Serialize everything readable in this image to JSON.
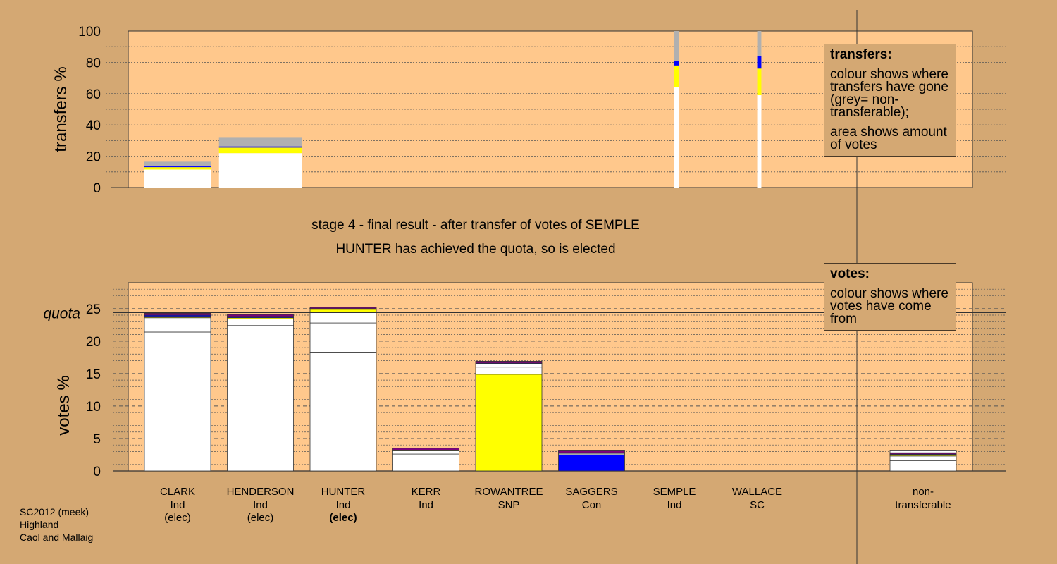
{
  "stage_title": "stage 4 - final result - after transfer of votes of SEMPLE",
  "stage_subtitle": "HUNTER has achieved the quota, so is elected",
  "legend_transfers": {
    "heading": "transfers:",
    "line1": "colour shows where transfers have gone (grey= non-transferable);",
    "line2": "area shows amount of votes"
  },
  "legend_votes": {
    "heading": "votes:",
    "line1": "colour shows where votes have come from"
  },
  "footer": {
    "line1": "SC2012 (meek)",
    "line2": "Highland",
    "line3": "Caol and Mallaig"
  },
  "colors": {
    "background": "#d4a873",
    "plot_background": "#ffc88c",
    "Ind": "#ffffff",
    "SNP": "#ffff00",
    "Con": "#0000ff",
    "SC": "#800080",
    "non_transferable": "#b0b0b0"
  },
  "chart_data": [
    {
      "type": "bar",
      "ylabel": "transfers %",
      "ylim": [
        0,
        100
      ],
      "yticks": [
        0,
        20,
        40,
        60,
        80,
        100
      ],
      "bars": [
        {
          "candidate": "CLARK",
          "width_share": 0.8,
          "segments": [
            {
              "party": "Ind",
              "value": 11.5
            },
            {
              "party": "SNP",
              "value": 1.5
            },
            {
              "party": "Con",
              "value": 0.5
            },
            {
              "party": "non_transferable",
              "value": 3.0
            }
          ]
        },
        {
          "candidate": "HENDERSON",
          "width_share": 1.0,
          "segments": [
            {
              "party": "Ind",
              "value": 22.0
            },
            {
              "party": "SNP",
              "value": 3.5
            },
            {
              "party": "Con",
              "value": 0.8
            },
            {
              "party": "non_transferable",
              "value": 5.5
            }
          ]
        },
        {
          "candidate": "SEMPLE",
          "width_share": 0.06,
          "segments": [
            {
              "party": "Ind",
              "value": 64
            },
            {
              "party": "SNP",
              "value": 14
            },
            {
              "party": "Con",
              "value": 3
            },
            {
              "party": "non_transferable",
              "value": 19
            }
          ]
        },
        {
          "candidate": "WALLACE",
          "width_share": 0.05,
          "segments": [
            {
              "party": "Ind",
              "value": 59
            },
            {
              "party": "SNP",
              "value": 17
            },
            {
              "party": "Con",
              "value": 8
            },
            {
              "party": "non_transferable",
              "value": 16
            }
          ]
        }
      ]
    },
    {
      "type": "bar",
      "ylabel": "votes %",
      "ylim": [
        0,
        29
      ],
      "yticks": [
        0,
        5,
        10,
        15,
        20,
        25
      ],
      "quota": 24.4,
      "quota_label": "quota",
      "candidates": [
        {
          "name": "CLARK",
          "party": "Ind",
          "status": "(elec)",
          "status_bold": false
        },
        {
          "name": "HENDERSON",
          "party": "Ind",
          "status": "(elec)",
          "status_bold": false
        },
        {
          "name": "HUNTER",
          "party": "Ind",
          "status": "(elec)",
          "status_bold": true
        },
        {
          "name": "KERR",
          "party": "Ind",
          "status": "",
          "status_bold": false
        },
        {
          "name": "ROWANTREE",
          "party": "SNP",
          "status": "",
          "status_bold": false
        },
        {
          "name": "SAGGERS",
          "party": "Con",
          "status": "",
          "status_bold": false
        },
        {
          "name": "SEMPLE",
          "party": "Ind",
          "status": "",
          "status_bold": false
        },
        {
          "name": "WALLACE",
          "party": "SC",
          "status": "",
          "status_bold": false
        }
      ],
      "nontransferable": {
        "label_line1": "non-",
        "label_line2": "transferable"
      },
      "stacks": [
        [
          {
            "party": "Ind",
            "value": 21.4
          },
          {
            "party": "Ind",
            "value": 2.2
          },
          {
            "party": "SNP",
            "value": 0.2
          },
          {
            "party": "Con",
            "value": 0.2
          },
          {
            "party": "SC",
            "value": 0.3
          }
        ],
        [
          {
            "party": "Ind",
            "value": 22.4
          },
          {
            "party": "Ind",
            "value": 1.0
          },
          {
            "party": "SNP",
            "value": 0.2
          },
          {
            "party": "Con",
            "value": 0.2
          },
          {
            "party": "SC",
            "value": 0.3
          }
        ],
        [
          {
            "party": "Ind",
            "value": 18.3
          },
          {
            "party": "Ind",
            "value": 4.5
          },
          {
            "party": "Ind",
            "value": 1.7
          },
          {
            "party": "SNP",
            "value": 0.4
          },
          {
            "party": "Con",
            "value": 0.1
          },
          {
            "party": "SC",
            "value": 0.2
          }
        ],
        [
          {
            "party": "Ind",
            "value": 2.6
          },
          {
            "party": "Ind",
            "value": 0.5
          },
          {
            "party": "SNP",
            "value": 0.1
          },
          {
            "party": "SC",
            "value": 0.3
          }
        ],
        [
          {
            "party": "SNP",
            "value": 14.9
          },
          {
            "party": "Ind",
            "value": 1.1
          },
          {
            "party": "Ind",
            "value": 0.5
          },
          {
            "party": "Con",
            "value": 0.1
          },
          {
            "party": "SC",
            "value": 0.3
          }
        ],
        [
          {
            "party": "Con",
            "value": 2.5
          },
          {
            "party": "Ind",
            "value": 0.2
          },
          {
            "party": "SNP",
            "value": 0.1
          },
          {
            "party": "SC",
            "value": 0.3
          }
        ],
        [],
        [],
        [
          {
            "party": "Ind",
            "value": 1.6
          },
          {
            "party": "Ind",
            "value": 0.7
          },
          {
            "party": "SNP",
            "value": 0.2
          },
          {
            "party": "Con",
            "value": 0.1
          },
          {
            "party": "SC",
            "value": 0.2
          },
          {
            "party": "Ind",
            "value": 0.3
          }
        ]
      ]
    }
  ]
}
